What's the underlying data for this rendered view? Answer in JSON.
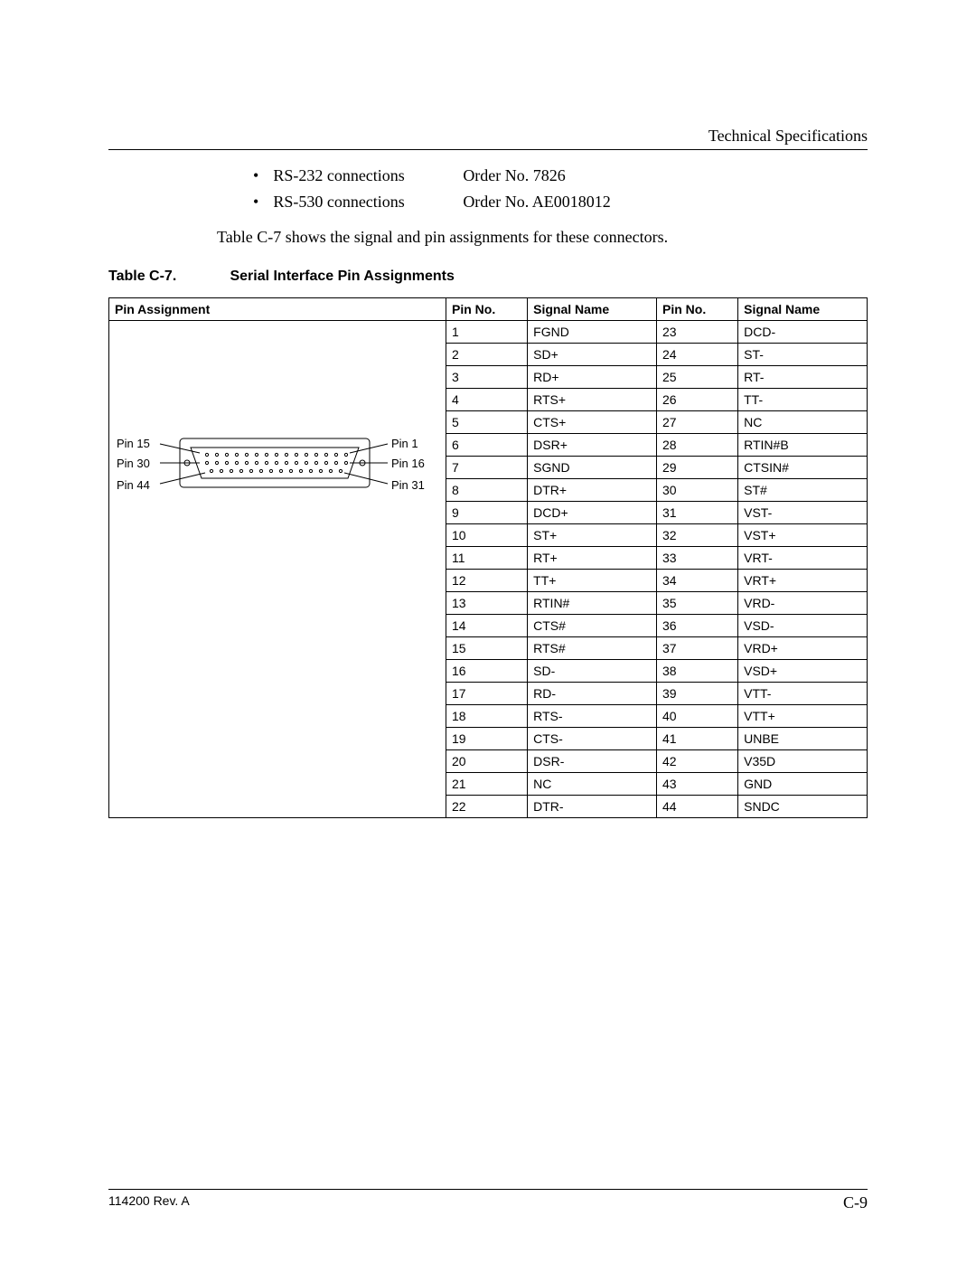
{
  "header": {
    "title": "Technical Specifications"
  },
  "connections": [
    {
      "label": "RS-232 connections",
      "order": "Order No. 7826"
    },
    {
      "label": "RS-530 connections",
      "order": "Order No. AE0018012"
    }
  ],
  "body_text": "Table C-7 shows the signal and pin assignments for these connectors.",
  "table": {
    "number": "Table C-7.",
    "title": "Serial Interface Pin Assignments",
    "headers": {
      "pin_assignment": "Pin Assignment",
      "pin_no": "Pin No.",
      "signal_name": "Signal Name"
    },
    "diagram_labels": {
      "pin15": "Pin 15",
      "pin1": "Pin 1",
      "pin30": "Pin 30",
      "pin16": "Pin 16",
      "pin44": "Pin 44",
      "pin31": "Pin 31"
    },
    "rows": [
      {
        "a_no": "1",
        "a_name": "FGND",
        "b_no": "23",
        "b_name": "DCD-"
      },
      {
        "a_no": "2",
        "a_name": "SD+",
        "b_no": "24",
        "b_name": "ST-"
      },
      {
        "a_no": "3",
        "a_name": "RD+",
        "b_no": "25",
        "b_name": "RT-"
      },
      {
        "a_no": "4",
        "a_name": "RTS+",
        "b_no": "26",
        "b_name": "TT-"
      },
      {
        "a_no": "5",
        "a_name": "CTS+",
        "b_no": "27",
        "b_name": "NC"
      },
      {
        "a_no": "6",
        "a_name": "DSR+",
        "b_no": "28",
        "b_name": "RTIN#B"
      },
      {
        "a_no": "7",
        "a_name": "SGND",
        "b_no": "29",
        "b_name": "CTSIN#"
      },
      {
        "a_no": "8",
        "a_name": "DTR+",
        "b_no": "30",
        "b_name": "ST#"
      },
      {
        "a_no": "9",
        "a_name": "DCD+",
        "b_no": "31",
        "b_name": "VST-"
      },
      {
        "a_no": "10",
        "a_name": "ST+",
        "b_no": "32",
        "b_name": "VST+"
      },
      {
        "a_no": "11",
        "a_name": "RT+",
        "b_no": "33",
        "b_name": "VRT-"
      },
      {
        "a_no": "12",
        "a_name": "TT+",
        "b_no": "34",
        "b_name": "VRT+"
      },
      {
        "a_no": "13",
        "a_name": "RTIN#",
        "b_no": "35",
        "b_name": "VRD-"
      },
      {
        "a_no": "14",
        "a_name": "CTS#",
        "b_no": "36",
        "b_name": "VSD-"
      },
      {
        "a_no": "15",
        "a_name": "RTS#",
        "b_no": "37",
        "b_name": "VRD+"
      },
      {
        "a_no": "16",
        "a_name": "SD-",
        "b_no": "38",
        "b_name": "VSD+"
      },
      {
        "a_no": "17",
        "a_name": "RD-",
        "b_no": "39",
        "b_name": "VTT-"
      },
      {
        "a_no": "18",
        "a_name": "RTS-",
        "b_no": "40",
        "b_name": "VTT+"
      },
      {
        "a_no": "19",
        "a_name": "CTS-",
        "b_no": "41",
        "b_name": "UNBE"
      },
      {
        "a_no": "20",
        "a_name": "DSR-",
        "b_no": "42",
        "b_name": "V35D"
      },
      {
        "a_no": "21",
        "a_name": "NC",
        "b_no": "43",
        "b_name": "GND"
      },
      {
        "a_no": "22",
        "a_name": "DTR-",
        "b_no": "44",
        "b_name": "SNDC"
      }
    ]
  },
  "footer": {
    "left": "114200 Rev. A",
    "right": "C-9"
  }
}
